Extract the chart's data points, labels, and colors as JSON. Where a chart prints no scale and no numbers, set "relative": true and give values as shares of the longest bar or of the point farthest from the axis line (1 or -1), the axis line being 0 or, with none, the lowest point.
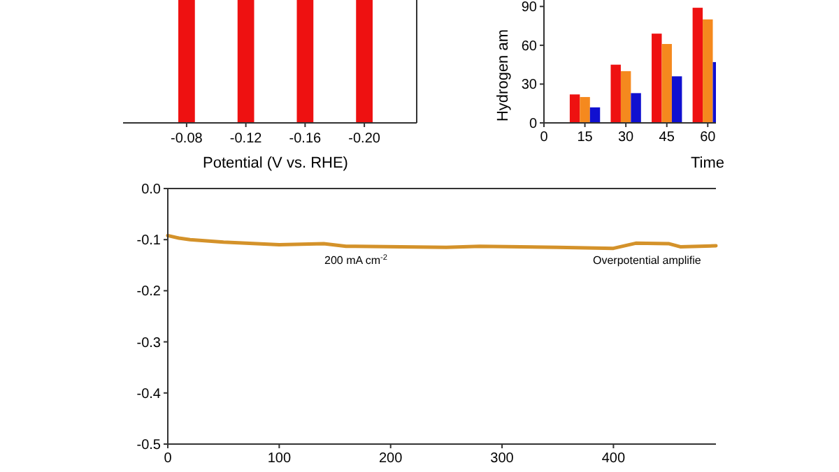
{
  "chart_data": [
    {
      "type": "bar",
      "relative": true,
      "xlabel": "Potential (V vs. RHE)",
      "categories": [
        "-0.08",
        "-0.12",
        "-0.16",
        "-0.20"
      ],
      "values": [
        1,
        1,
        1,
        1
      ],
      "color": "#ee1111"
    },
    {
      "type": "bar",
      "xlabel": "Time",
      "ylabel": "Hydrogen am",
      "x": [
        15,
        30,
        45,
        60
      ],
      "xlim": [
        0,
        63
      ],
      "xticks": [
        0,
        15,
        30,
        45,
        60
      ],
      "ylim": [
        0,
        95
      ],
      "yticks": [
        0,
        30,
        60,
        90
      ],
      "series": [
        {
          "color": "#ee1111",
          "values": [
            22,
            45,
            69,
            89
          ]
        },
        {
          "color": "#f5891e",
          "values": [
            20,
            40,
            61,
            80
          ]
        },
        {
          "color": "#1010d0",
          "values": [
            12,
            23,
            36,
            47
          ]
        }
      ]
    },
    {
      "type": "line",
      "x": [
        0,
        10,
        20,
        50,
        100,
        140,
        160,
        250,
        280,
        350,
        400,
        420,
        450,
        460,
        492
      ],
      "values": [
        -0.092,
        -0.097,
        -0.1,
        -0.105,
        -0.11,
        -0.108,
        -0.113,
        -0.115,
        -0.113,
        -0.115,
        -0.117,
        -0.107,
        -0.108,
        -0.114,
        -0.112
      ],
      "color": "#d4922a",
      "xlim": [
        0,
        492
      ],
      "xticks": [
        0,
        100,
        200,
        300,
        400
      ],
      "ylim": [
        -0.5,
        0
      ],
      "yticks": [
        {
          "value": 0,
          "label": "0.0"
        },
        -0.1,
        -0.2,
        -0.3,
        -0.4,
        -0.5
      ],
      "annotations": [
        "200 mA cm$^{-2}$",
        "Overpotential amplifie"
      ]
    }
  ]
}
